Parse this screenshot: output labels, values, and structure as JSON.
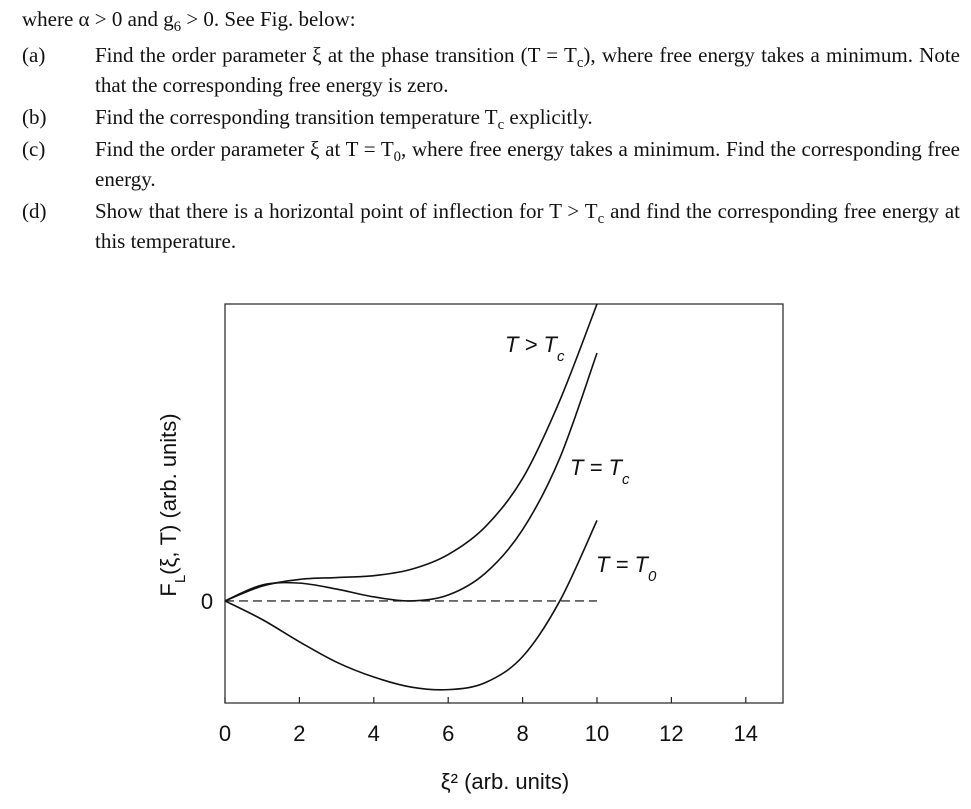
{
  "doc": {
    "intro": [
      "where α > 0 and g",
      {
        "sub": "6"
      },
      " > 0. See Fig. below:"
    ],
    "items": [
      {
        "label": "(a)",
        "text": [
          "Find the order parameter ξ at the phase transition (T = T",
          {
            "sub": "c"
          },
          "), where free energy takes a minimum. Note that the corresponding free energy is zero."
        ]
      },
      {
        "label": "(b)",
        "text": [
          "Find the corresponding transition temperature T",
          {
            "sub": "c"
          },
          " explicitly."
        ]
      },
      {
        "label": "(c)",
        "text": [
          "Find the order parameter ξ at T = T",
          {
            "sub": "0"
          },
          ", where free energy takes a minimum. Find the corresponding free energy."
        ]
      },
      {
        "label": "(d)",
        "text": [
          "Show that there is a horizontal point of inflection for T > T",
          {
            "sub": "c"
          },
          " and find the corresponding free energy at this temperature."
        ]
      }
    ]
  },
  "chart_data": {
    "type": "line",
    "xlabel": "ξ² (arb. units)",
    "ylabel": [
      "F",
      {
        "sub": "L"
      },
      "(ξ, T) (arb. units)"
    ],
    "x": [
      0,
      1,
      2,
      3,
      4,
      5,
      6,
      7,
      8,
      9,
      10
    ],
    "series": [
      {
        "name": [
          "T > T",
          {
            "sub": "c"
          }
        ],
        "color": "#111111",
        "values": [
          0,
          0.4,
          0.58,
          0.63,
          0.68,
          0.85,
          1.25,
          2.0,
          3.3,
          5.4,
          8
        ]
      },
      {
        "name": [
          "T = T",
          {
            "sub": "c"
          }
        ],
        "color": "#111111",
        "values": [
          0,
          0.43,
          0.48,
          0.32,
          0.11,
          0,
          0.16,
          0.75,
          1.92,
          3.85,
          6.68
        ]
      },
      {
        "name": [
          "T = T",
          {
            "sub": "0"
          }
        ],
        "color": "#111111",
        "values": [
          0,
          -0.5,
          -1.1,
          -1.65,
          -2.05,
          -2.32,
          -2.39,
          -2.2,
          -1.5,
          0,
          2.17
        ]
      }
    ],
    "xlim": [
      0,
      15
    ],
    "ylim": [
      -2.75,
      8
    ],
    "xticks": [
      0,
      2,
      4,
      6,
      8,
      10,
      12,
      14
    ],
    "yticks": [
      0
    ]
  }
}
